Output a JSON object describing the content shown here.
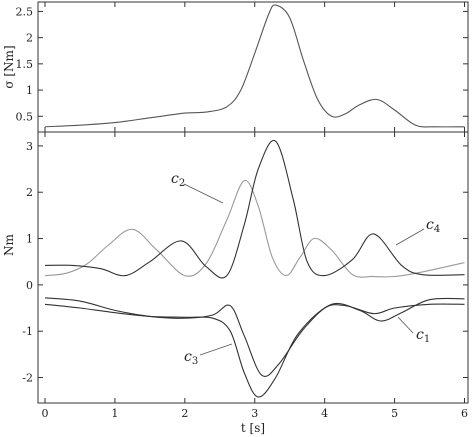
{
  "chart_data": [
    {
      "type": "line",
      "ylabel": "σ [Nm]",
      "xlim": [
        -0.1,
        6.05
      ],
      "ylim": [
        0.2,
        2.68
      ],
      "yticks": [
        0.5,
        1,
        1.5,
        2,
        2.5
      ],
      "yticklabels": [
        "0.5",
        "1",
        "1.5",
        "2",
        "2.5"
      ],
      "grid": false,
      "series": [
        {
          "color": "#555555",
          "x": [
            0,
            0.5,
            1,
            1.5,
            2,
            2.3,
            2.6,
            2.8,
            3,
            3.2,
            3.3,
            3.5,
            3.7,
            3.9,
            4.1,
            4.3,
            4.5,
            4.75,
            5,
            5.3,
            5.6,
            6
          ],
          "y": [
            0.3,
            0.33,
            0.38,
            0.47,
            0.56,
            0.58,
            0.68,
            1.0,
            1.7,
            2.45,
            2.62,
            2.38,
            1.55,
            0.82,
            0.5,
            0.55,
            0.72,
            0.82,
            0.62,
            0.33,
            0.3,
            0.3
          ]
        }
      ]
    },
    {
      "type": "line",
      "xlabel": "t [s]",
      "ylabel": "Nm",
      "xlim": [
        -0.1,
        6.05
      ],
      "ylim": [
        -2.55,
        3.3
      ],
      "xticks": [
        0,
        1,
        2,
        3,
        4,
        5,
        6
      ],
      "xticklabels": [
        "0",
        "1",
        "2",
        "3",
        "4",
        "5",
        "6"
      ],
      "yticks": [
        -2,
        -1,
        0,
        1,
        2,
        3
      ],
      "yticklabels": [
        "-2",
        "-1",
        "0",
        "1",
        "2",
        "3"
      ],
      "grid": false,
      "annotations": [
        {
          "base": "c",
          "sub": "2"
        },
        {
          "base": "c",
          "sub": "4"
        },
        {
          "base": "c",
          "sub": "3"
        },
        {
          "base": "c",
          "sub": "1"
        }
      ],
      "series": [
        {
          "color": "#999999",
          "x": [
            0,
            0.3,
            0.6,
            0.9,
            1.25,
            1.6,
            2.0,
            2.3,
            2.6,
            2.85,
            3.05,
            3.25,
            3.45,
            3.65,
            3.85,
            4.1,
            4.4,
            4.7,
            5.0,
            5.4,
            6
          ],
          "y": [
            0.2,
            0.25,
            0.45,
            0.85,
            1.2,
            0.75,
            0.2,
            0.45,
            1.4,
            2.25,
            1.7,
            0.6,
            0.2,
            0.6,
            1.0,
            0.75,
            0.22,
            0.18,
            0.18,
            0.28,
            0.48
          ]
        },
        {
          "color": "#333333",
          "x": [
            0,
            0.4,
            0.8,
            1.15,
            1.5,
            1.95,
            2.3,
            2.6,
            2.85,
            3.05,
            3.3,
            3.55,
            3.75,
            4.0,
            4.4,
            4.7,
            5.1,
            5.4,
            6
          ],
          "y": [
            0.42,
            0.42,
            0.35,
            0.2,
            0.5,
            0.95,
            0.4,
            0.2,
            1.3,
            2.5,
            3.1,
            1.85,
            0.5,
            0.2,
            0.55,
            1.1,
            0.42,
            0.22,
            0.22
          ]
        },
        {
          "color": "#333333",
          "x": [
            0,
            0.5,
            1.0,
            1.5,
            2.0,
            2.4,
            2.65,
            2.85,
            3.1,
            3.35,
            3.7,
            4.1,
            4.5,
            4.8,
            5.1,
            5.5,
            6
          ],
          "y": [
            -0.28,
            -0.35,
            -0.55,
            -0.68,
            -0.72,
            -0.65,
            -0.45,
            -1.1,
            -1.95,
            -1.7,
            -0.95,
            -0.42,
            -0.55,
            -0.78,
            -0.6,
            -0.32,
            -0.3
          ]
        },
        {
          "color": "#333333",
          "x": [
            0,
            0.5,
            1.0,
            1.5,
            2.0,
            2.4,
            2.65,
            2.85,
            3.05,
            3.3,
            3.6,
            4.0,
            4.3,
            4.7,
            5.0,
            5.5,
            6
          ],
          "y": [
            -0.42,
            -0.5,
            -0.6,
            -0.68,
            -0.7,
            -0.72,
            -1.0,
            -1.9,
            -2.42,
            -2.0,
            -1.1,
            -0.5,
            -0.45,
            -0.62,
            -0.5,
            -0.42,
            -0.42
          ]
        }
      ]
    }
  ]
}
